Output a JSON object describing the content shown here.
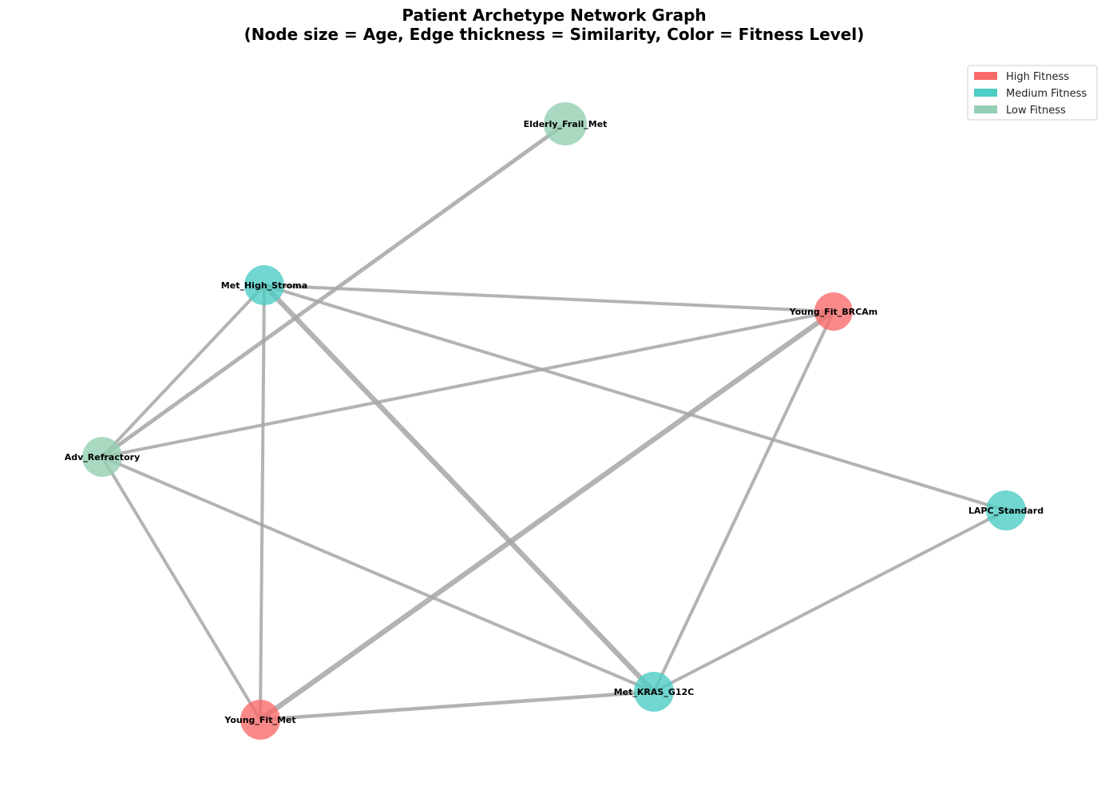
{
  "title": {
    "line1": "Patient Archetype Network Graph",
    "line2": "(Node size = Age, Edge thickness = Similarity, Color = Fitness Level)"
  },
  "legend": {
    "items": [
      {
        "label": "High Fitness",
        "color": "#f96b6b"
      },
      {
        "label": "Medium Fitness",
        "color": "#4ecdc4"
      },
      {
        "label": "Low Fitness",
        "color": "#95cfb3"
      }
    ]
  },
  "colors": {
    "high": "#f96b6b",
    "medium": "#4ecdc4",
    "low": "#95cfb3",
    "edge": "#a6a6a6"
  },
  "nodes": [
    {
      "id": "Elderly_Frail_Met",
      "label": "Elderly_Frail_Met",
      "fitness": "low"
    },
    {
      "id": "Met_High_Stroma",
      "label": "Met_High_Stroma",
      "fitness": "medium"
    },
    {
      "id": "Young_Fit_BRCAm",
      "label": "Young_Fit_BRCAm",
      "fitness": "high"
    },
    {
      "id": "Adv_Refractory",
      "label": "Adv_Refractory",
      "fitness": "low"
    },
    {
      "id": "LAPC_Standard",
      "label": "LAPC_Standard",
      "fitness": "medium"
    },
    {
      "id": "Met_KRAS_G12C",
      "label": "Met_KRAS_G12C",
      "fitness": "medium"
    },
    {
      "id": "Young_Fit_Met",
      "label": "Young_Fit_Met",
      "fitness": "high"
    }
  ],
  "edges": [
    {
      "source": "Elderly_Frail_Met",
      "target": "Adv_Refractory"
    },
    {
      "source": "Met_High_Stroma",
      "target": "Young_Fit_BRCAm"
    },
    {
      "source": "Met_High_Stroma",
      "target": "Adv_Refractory"
    },
    {
      "source": "Met_High_Stroma",
      "target": "Young_Fit_Met"
    },
    {
      "source": "Met_High_Stroma",
      "target": "Met_KRAS_G12C"
    },
    {
      "source": "Met_High_Stroma",
      "target": "LAPC_Standard"
    },
    {
      "source": "Young_Fit_BRCAm",
      "target": "Adv_Refractory"
    },
    {
      "source": "Young_Fit_BRCAm",
      "target": "Young_Fit_Met"
    },
    {
      "source": "Young_Fit_BRCAm",
      "target": "Met_KRAS_G12C"
    },
    {
      "source": "Adv_Refractory",
      "target": "Young_Fit_Met"
    },
    {
      "source": "Adv_Refractory",
      "target": "Met_KRAS_G12C"
    },
    {
      "source": "LAPC_Standard",
      "target": "Met_KRAS_G12C"
    },
    {
      "source": "Met_KRAS_G12C",
      "target": "Young_Fit_Met"
    }
  ]
}
